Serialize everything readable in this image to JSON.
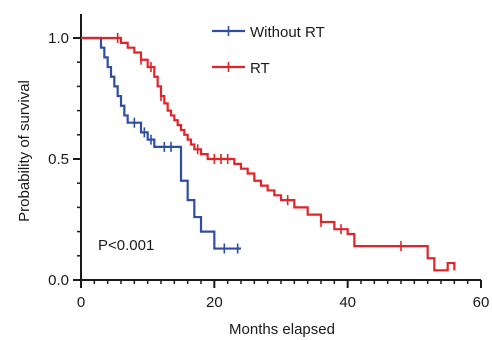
{
  "chart_data": {
    "type": "line",
    "subtype": "kaplan-meier",
    "title": "",
    "xlabel": "Months elapsed",
    "ylabel": "Probability of survival",
    "xlim": [
      0,
      60
    ],
    "ylim": [
      0,
      1
    ],
    "xticks": [
      "0",
      "20",
      "40",
      "60"
    ],
    "yticks": [
      "0.0",
      "0.5",
      "1.0"
    ],
    "grid": false,
    "legend_position": "top-right",
    "annotation": "P<0.001",
    "series": [
      {
        "name": "Without RT",
        "color": "#2d4ea3",
        "steps": [
          [
            0,
            1.0
          ],
          [
            2.5,
            1.0
          ],
          [
            3,
            0.96
          ],
          [
            3.5,
            0.92
          ],
          [
            4,
            0.88
          ],
          [
            4.5,
            0.84
          ],
          [
            5,
            0.8
          ],
          [
            5.5,
            0.76
          ],
          [
            6,
            0.72
          ],
          [
            6.5,
            0.68
          ],
          [
            7,
            0.65
          ],
          [
            9,
            0.61
          ],
          [
            10,
            0.58
          ],
          [
            11,
            0.55
          ],
          [
            15,
            0.41
          ],
          [
            16,
            0.33
          ],
          [
            17,
            0.26
          ],
          [
            18,
            0.2
          ],
          [
            20,
            0.13
          ],
          [
            24,
            0.13
          ]
        ],
        "censor_times": [
          8,
          9.5,
          10.5,
          12.5,
          13.5,
          21.5,
          23.5
        ]
      },
      {
        "name": "RT",
        "color": "#e0242a",
        "steps": [
          [
            0,
            1.0
          ],
          [
            5,
            1.0
          ],
          [
            6,
            0.98
          ],
          [
            7,
            0.96
          ],
          [
            8,
            0.94
          ],
          [
            9,
            0.91
          ],
          [
            10,
            0.88
          ],
          [
            11,
            0.84
          ],
          [
            11.5,
            0.8
          ],
          [
            12,
            0.76
          ],
          [
            12.5,
            0.73
          ],
          [
            13,
            0.7
          ],
          [
            13.5,
            0.68
          ],
          [
            14,
            0.66
          ],
          [
            14.5,
            0.64
          ],
          [
            15,
            0.62
          ],
          [
            15.5,
            0.6
          ],
          [
            16,
            0.58
          ],
          [
            16.5,
            0.56
          ],
          [
            17,
            0.54
          ],
          [
            18,
            0.52
          ],
          [
            19,
            0.5
          ],
          [
            23,
            0.48
          ],
          [
            24,
            0.46
          ],
          [
            25,
            0.44
          ],
          [
            26,
            0.41
          ],
          [
            27,
            0.39
          ],
          [
            28,
            0.37
          ],
          [
            29,
            0.35
          ],
          [
            30,
            0.33
          ],
          [
            32,
            0.3
          ],
          [
            34,
            0.27
          ],
          [
            36,
            0.24
          ],
          [
            38,
            0.21
          ],
          [
            40,
            0.19
          ],
          [
            41,
            0.14
          ],
          [
            52,
            0.09
          ],
          [
            53,
            0.04
          ],
          [
            55,
            0.07
          ],
          [
            56,
            0.04
          ]
        ],
        "censor_times": [
          5.5,
          9,
          10.5,
          12,
          17.5,
          20,
          21,
          22,
          31,
          36,
          39,
          48
        ]
      }
    ]
  }
}
